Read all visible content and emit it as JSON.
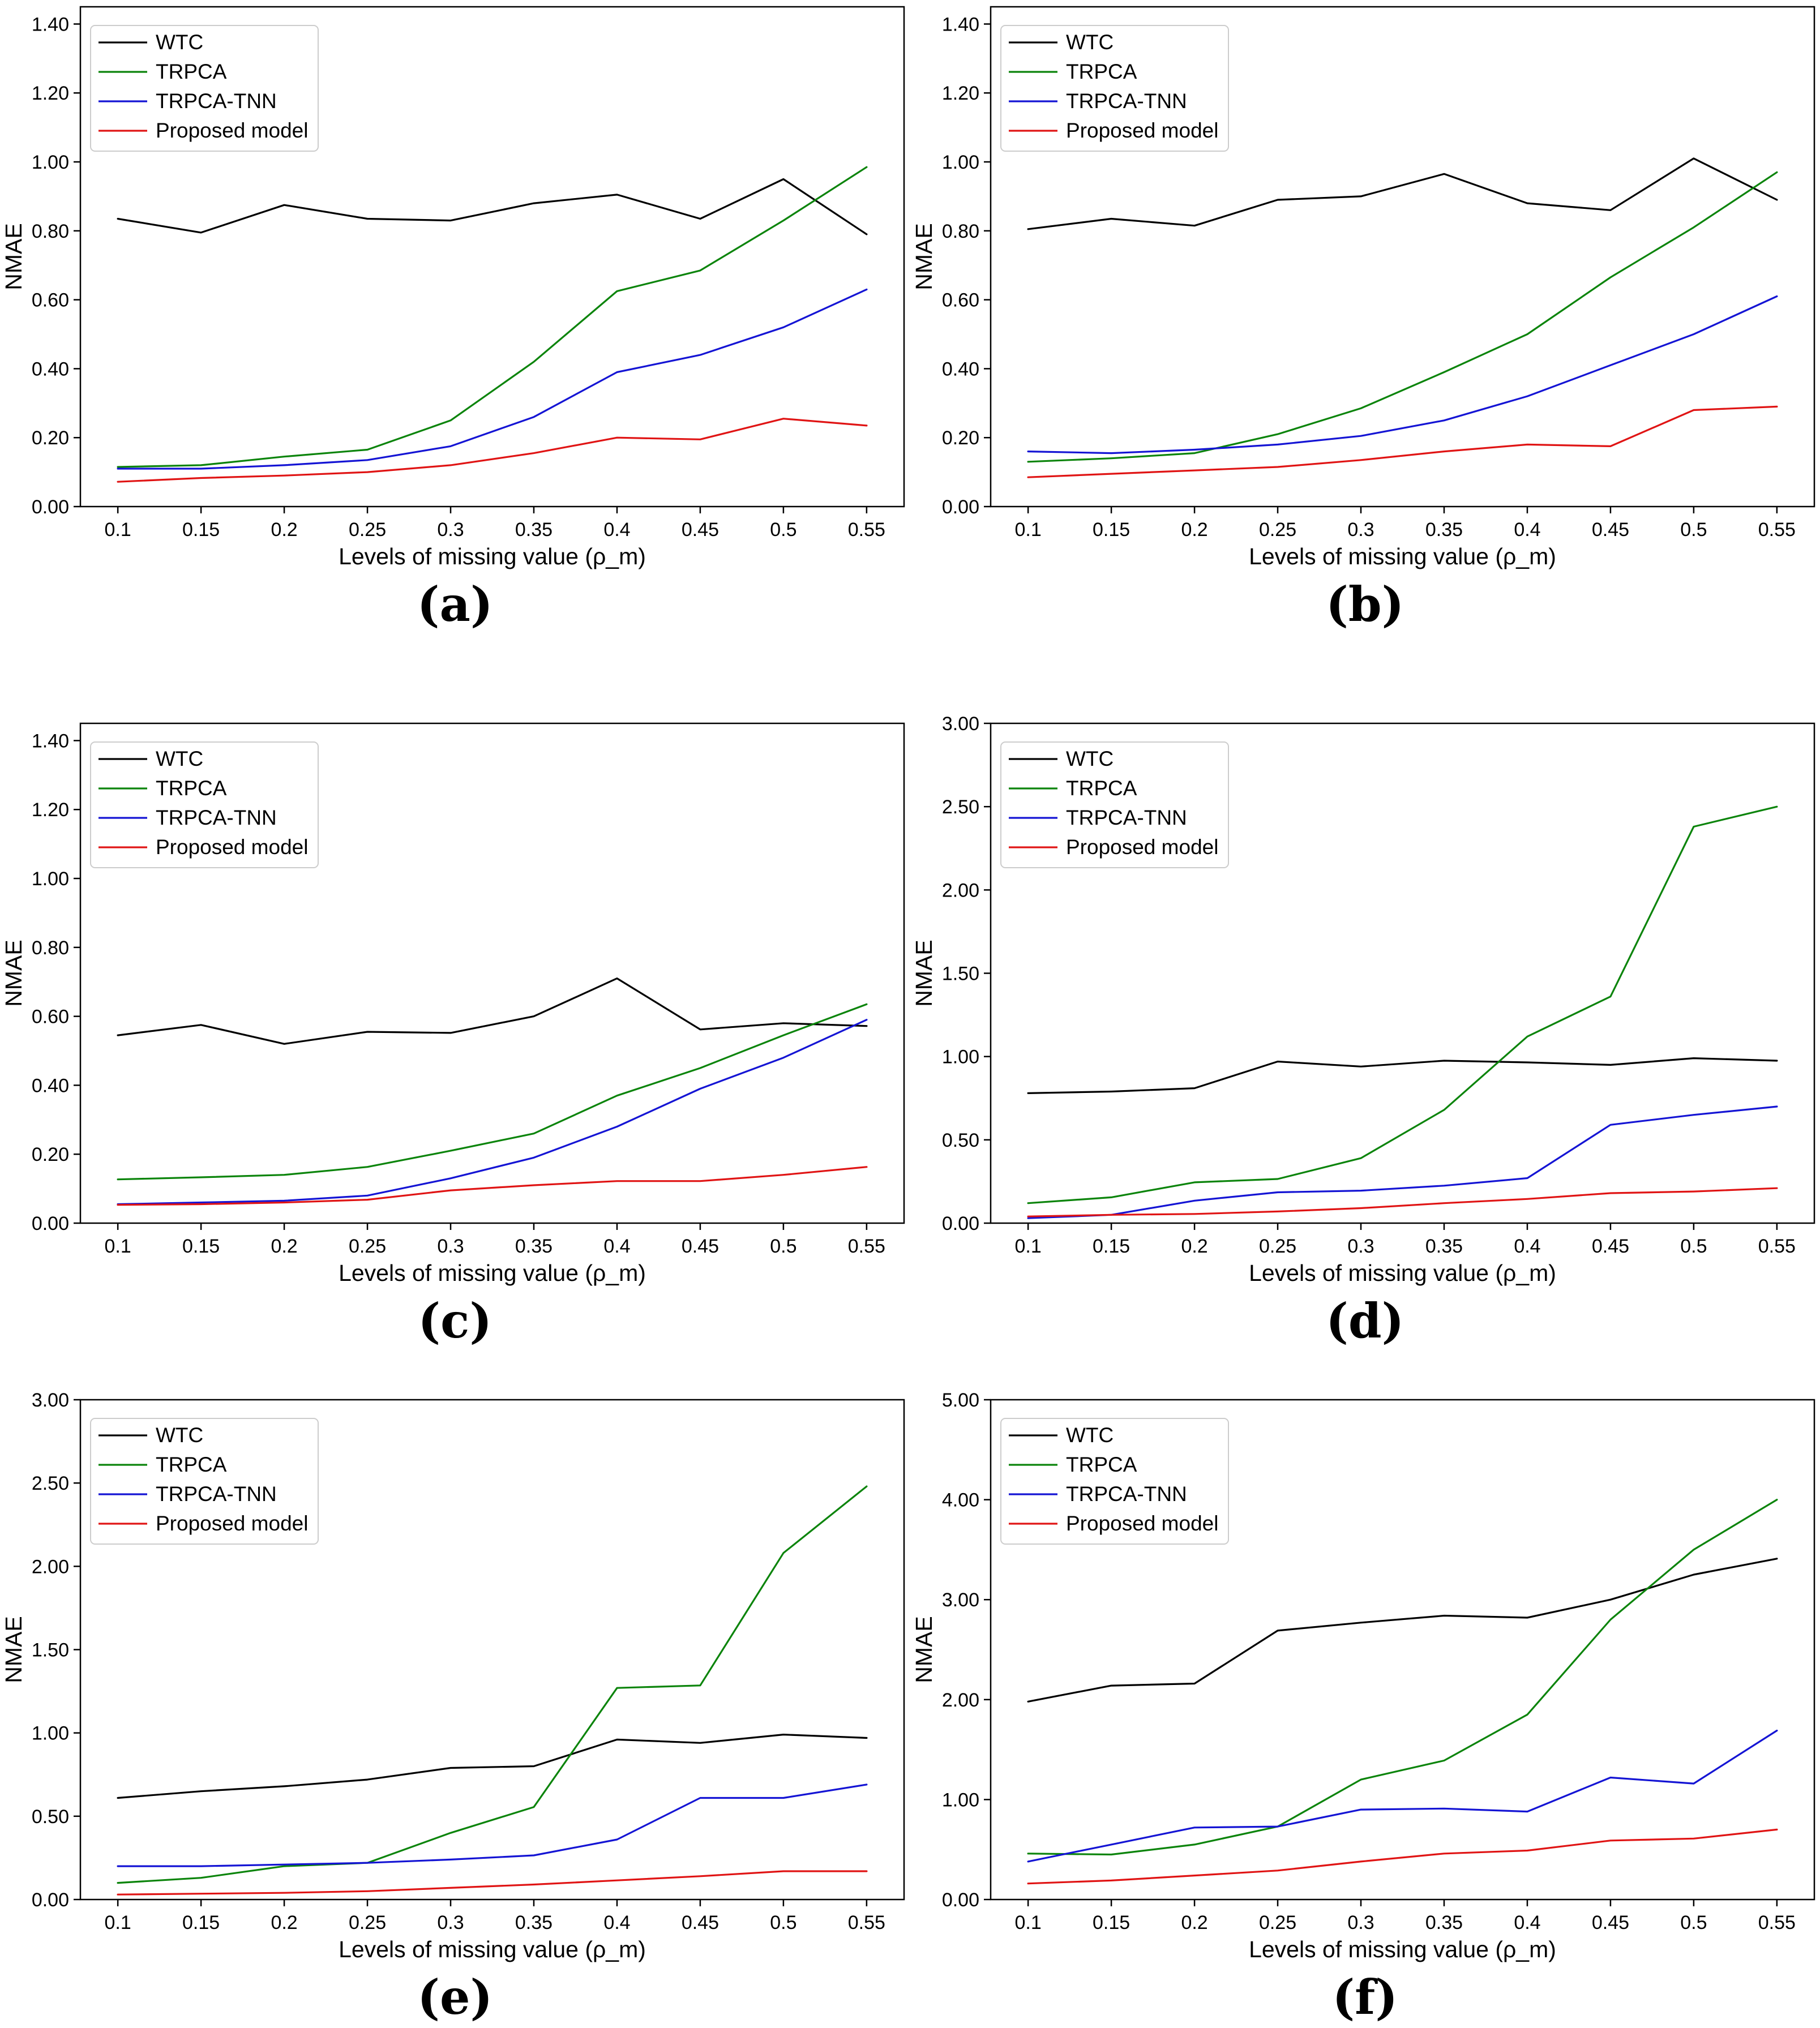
{
  "figure": {
    "xlabel": "Levels of missing value (ρ_m)",
    "ylabel": "NMAE",
    "x_values": [
      0.1,
      0.15,
      0.2,
      0.25,
      0.3,
      0.35,
      0.4,
      0.45,
      0.5,
      0.55
    ],
    "x_tick_labels": [
      "0.1",
      "0.15",
      "0.2",
      "0.25",
      "0.3",
      "0.35",
      "0.4",
      "0.45",
      "0.5",
      "0.55"
    ],
    "legend_entries": [
      "WTC",
      "TRPCA",
      "TRPCA-TNN",
      "Proposed model"
    ],
    "colors": {
      "WTC": "#000000",
      "TRPCA": "#0b840b",
      "TRPCA-TNN": "#1414d4",
      "Proposed model": "#e01414"
    }
  },
  "chart_data": [
    {
      "type": "line",
      "caption": "(a)",
      "xlabel": "Levels of missing value (ρ_m)",
      "ylabel": "NMAE",
      "x": [
        0.1,
        0.15,
        0.2,
        0.25,
        0.3,
        0.35,
        0.4,
        0.45,
        0.5,
        0.55
      ],
      "ylim": [
        0,
        1.45
      ],
      "yticks": [
        0.0,
        0.2,
        0.4,
        0.6,
        0.8,
        1.0,
        1.2,
        1.4
      ],
      "legend_position": "upper-left",
      "grid": false,
      "series": [
        {
          "name": "WTC",
          "color": "#000000",
          "values": [
            0.835,
            0.795,
            0.875,
            0.835,
            0.83,
            0.88,
            0.905,
            0.835,
            0.95,
            0.79
          ]
        },
        {
          "name": "TRPCA",
          "color": "#0b840b",
          "values": [
            0.115,
            0.12,
            0.145,
            0.165,
            0.25,
            0.42,
            0.625,
            0.685,
            0.83,
            0.985
          ]
        },
        {
          "name": "TRPCA-TNN",
          "color": "#1414d4",
          "values": [
            0.11,
            0.11,
            0.12,
            0.135,
            0.175,
            0.26,
            0.39,
            0.44,
            0.52,
            0.63
          ]
        },
        {
          "name": "Proposed model",
          "color": "#e01414",
          "values": [
            0.072,
            0.083,
            0.09,
            0.1,
            0.12,
            0.155,
            0.2,
            0.195,
            0.255,
            0.235
          ]
        }
      ]
    },
    {
      "type": "line",
      "caption": "(b)",
      "xlabel": "Levels of missing value (ρ_m)",
      "ylabel": "NMAE",
      "x": [
        0.1,
        0.15,
        0.2,
        0.25,
        0.3,
        0.35,
        0.4,
        0.45,
        0.5,
        0.55
      ],
      "ylim": [
        0,
        1.45
      ],
      "yticks": [
        0.0,
        0.2,
        0.4,
        0.6,
        0.8,
        1.0,
        1.2,
        1.4
      ],
      "legend_position": "upper-left",
      "grid": false,
      "series": [
        {
          "name": "WTC",
          "color": "#000000",
          "values": [
            0.805,
            0.835,
            0.815,
            0.89,
            0.9,
            0.965,
            0.88,
            0.86,
            1.01,
            0.89
          ]
        },
        {
          "name": "TRPCA",
          "color": "#0b840b",
          "values": [
            0.13,
            0.14,
            0.155,
            0.21,
            0.285,
            0.39,
            0.5,
            0.665,
            0.81,
            0.97
          ]
        },
        {
          "name": "TRPCA-TNN",
          "color": "#1414d4",
          "values": [
            0.16,
            0.155,
            0.165,
            0.18,
            0.205,
            0.25,
            0.32,
            0.41,
            0.5,
            0.61
          ]
        },
        {
          "name": "Proposed model",
          "color": "#e01414",
          "values": [
            0.085,
            0.095,
            0.105,
            0.115,
            0.135,
            0.16,
            0.18,
            0.175,
            0.28,
            0.29
          ]
        }
      ]
    },
    {
      "type": "line",
      "caption": "(c)",
      "xlabel": "Levels of missing value (ρ_m)",
      "ylabel": "NMAE",
      "x": [
        0.1,
        0.15,
        0.2,
        0.25,
        0.3,
        0.35,
        0.4,
        0.45,
        0.5,
        0.55
      ],
      "ylim": [
        0,
        1.45
      ],
      "yticks": [
        0.0,
        0.2,
        0.4,
        0.6,
        0.8,
        1.0,
        1.2,
        1.4
      ],
      "legend_position": "upper-left",
      "grid": false,
      "series": [
        {
          "name": "WTC",
          "color": "#000000",
          "values": [
            0.545,
            0.575,
            0.52,
            0.555,
            0.552,
            0.6,
            0.71,
            0.562,
            0.58,
            0.572
          ]
        },
        {
          "name": "TRPCA",
          "color": "#0b840b",
          "values": [
            0.127,
            0.133,
            0.14,
            0.163,
            0.21,
            0.26,
            0.37,
            0.45,
            0.545,
            0.635
          ]
        },
        {
          "name": "TRPCA-TNN",
          "color": "#1414d4",
          "values": [
            0.055,
            0.06,
            0.065,
            0.08,
            0.13,
            0.19,
            0.28,
            0.39,
            0.48,
            0.59
          ]
        },
        {
          "name": "Proposed model",
          "color": "#e01414",
          "values": [
            0.053,
            0.055,
            0.06,
            0.068,
            0.095,
            0.11,
            0.122,
            0.122,
            0.14,
            0.163
          ]
        }
      ]
    },
    {
      "type": "line",
      "caption": "(d)",
      "xlabel": "Levels of missing value (ρ_m)",
      "ylabel": "NMAE",
      "x": [
        0.1,
        0.15,
        0.2,
        0.25,
        0.3,
        0.35,
        0.4,
        0.45,
        0.5,
        0.55
      ],
      "ylim": [
        0,
        3.0
      ],
      "yticks": [
        0.0,
        0.5,
        1.0,
        1.5,
        2.0,
        2.5,
        3.0
      ],
      "legend_position": "upper-left",
      "grid": false,
      "series": [
        {
          "name": "WTC",
          "color": "#000000",
          "values": [
            0.78,
            0.79,
            0.81,
            0.97,
            0.94,
            0.975,
            0.965,
            0.95,
            0.99,
            0.975
          ]
        },
        {
          "name": "TRPCA",
          "color": "#0b840b",
          "values": [
            0.12,
            0.155,
            0.245,
            0.265,
            0.39,
            0.68,
            1.12,
            1.36,
            2.38,
            2.5
          ]
        },
        {
          "name": "TRPCA-TNN",
          "color": "#1414d4",
          "values": [
            0.03,
            0.05,
            0.135,
            0.185,
            0.195,
            0.225,
            0.27,
            0.59,
            0.65,
            0.7
          ]
        },
        {
          "name": "Proposed model",
          "color": "#e01414",
          "values": [
            0.04,
            0.05,
            0.055,
            0.07,
            0.09,
            0.12,
            0.145,
            0.18,
            0.19,
            0.21
          ]
        }
      ]
    },
    {
      "type": "line",
      "caption": "(e)",
      "xlabel": "Levels of missing value (ρ_m)",
      "ylabel": "NMAE",
      "x": [
        0.1,
        0.15,
        0.2,
        0.25,
        0.3,
        0.35,
        0.4,
        0.45,
        0.5,
        0.55
      ],
      "ylim": [
        0,
        3.0
      ],
      "yticks": [
        0.0,
        0.5,
        1.0,
        1.5,
        2.0,
        2.5,
        3.0
      ],
      "legend_position": "upper-left",
      "grid": false,
      "series": [
        {
          "name": "WTC",
          "color": "#000000",
          "values": [
            0.61,
            0.65,
            0.68,
            0.72,
            0.79,
            0.8,
            0.96,
            0.94,
            0.99,
            0.97
          ]
        },
        {
          "name": "TRPCA",
          "color": "#0b840b",
          "values": [
            0.1,
            0.13,
            0.2,
            0.22,
            0.4,
            0.555,
            1.27,
            1.285,
            2.08,
            2.48
          ]
        },
        {
          "name": "TRPCA-TNN",
          "color": "#1414d4",
          "values": [
            0.2,
            0.2,
            0.21,
            0.22,
            0.24,
            0.265,
            0.36,
            0.61,
            0.61,
            0.69
          ]
        },
        {
          "name": "Proposed model",
          "color": "#e01414",
          "values": [
            0.03,
            0.035,
            0.04,
            0.05,
            0.07,
            0.09,
            0.115,
            0.14,
            0.17,
            0.17
          ]
        }
      ]
    },
    {
      "type": "line",
      "caption": "(f)",
      "xlabel": "Levels of missing value (ρ_m)",
      "ylabel": "NMAE",
      "x": [
        0.1,
        0.15,
        0.2,
        0.25,
        0.3,
        0.35,
        0.4,
        0.45,
        0.5,
        0.55
      ],
      "ylim": [
        0,
        5.0
      ],
      "yticks": [
        0.0,
        1.0,
        2.0,
        3.0,
        4.0,
        5.0
      ],
      "legend_position": "upper-left",
      "grid": false,
      "series": [
        {
          "name": "WTC",
          "color": "#000000",
          "values": [
            1.98,
            2.14,
            2.16,
            2.69,
            2.77,
            2.84,
            2.82,
            3.0,
            3.25,
            3.41
          ]
        },
        {
          "name": "TRPCA",
          "color": "#0b840b",
          "values": [
            0.46,
            0.45,
            0.55,
            0.73,
            1.2,
            1.39,
            1.85,
            2.8,
            3.5,
            4.0
          ]
        },
        {
          "name": "TRPCA-TNN",
          "color": "#1414d4",
          "values": [
            0.38,
            0.55,
            0.72,
            0.73,
            0.9,
            0.91,
            0.88,
            1.22,
            1.16,
            1.69
          ]
        },
        {
          "name": "Proposed model",
          "color": "#e01414",
          "values": [
            0.16,
            0.19,
            0.24,
            0.29,
            0.38,
            0.46,
            0.49,
            0.59,
            0.61,
            0.7
          ]
        }
      ]
    }
  ]
}
